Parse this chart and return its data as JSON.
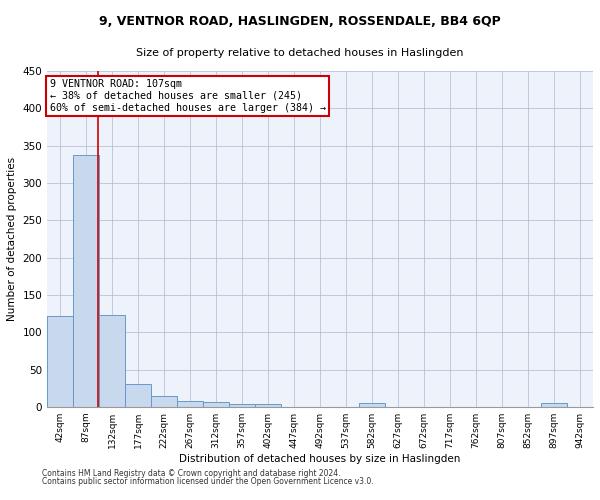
{
  "title": "9, VENTNOR ROAD, HASLINGDEN, ROSSENDALE, BB4 6QP",
  "subtitle": "Size of property relative to detached houses in Haslingden",
  "xlabel": "Distribution of detached houses by size in Haslingden",
  "ylabel": "Number of detached properties",
  "footnote1": "Contains HM Land Registry data © Crown copyright and database right 2024.",
  "footnote2": "Contains public sector information licensed under the Open Government Licence v3.0.",
  "bin_labels": [
    "42sqm",
    "87sqm",
    "132sqm",
    "177sqm",
    "222sqm",
    "267sqm",
    "312sqm",
    "357sqm",
    "402sqm",
    "447sqm",
    "492sqm",
    "537sqm",
    "582sqm",
    "627sqm",
    "672sqm",
    "717sqm",
    "762sqm",
    "807sqm",
    "852sqm",
    "897sqm",
    "942sqm"
  ],
  "bar_values": [
    122,
    338,
    123,
    30,
    15,
    8,
    6,
    4,
    4,
    0,
    0,
    0,
    5,
    0,
    0,
    0,
    0,
    0,
    0,
    5,
    0
  ],
  "bar_color": "#c8d9ee",
  "bar_edge_color": "#6699cc",
  "ylim": [
    0,
    450
  ],
  "yticks": [
    0,
    50,
    100,
    150,
    200,
    250,
    300,
    350,
    400,
    450
  ],
  "property_label": "9 VENTNOR ROAD: 107sqm",
  "annotation_line1": "← 38% of detached houses are smaller (245)",
  "annotation_line2": "60% of semi-detached houses are larger (384) →",
  "red_line_x": 1.44,
  "red_line_color": "#cc0000",
  "annotation_box_color": "#cc0000",
  "background_color": "#eef2fb",
  "grid_color": "#b0b8d0"
}
